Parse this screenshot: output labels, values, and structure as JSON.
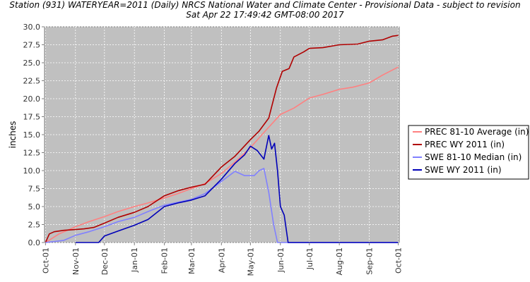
{
  "chart_data": {
    "type": "line",
    "title": "Station (931) WATERYEAR=2011 (Daily) NRCS National Water and Climate Center - Provisional Data - subject to revision",
    "subtitle": "Sat Apr 22 17:49:42 GMT-08:00 2017",
    "ylabel": "inches",
    "xlabel": "",
    "ylim": [
      0,
      30
    ],
    "yticks": [
      "0.0",
      "2.5",
      "5.0",
      "7.5",
      "10.0",
      "12.5",
      "15.0",
      "17.5",
      "20.0",
      "22.5",
      "25.0",
      "27.5",
      "30.0"
    ],
    "xlim": [
      "2010-09-30",
      "2011-10-02"
    ],
    "xticks": [
      {
        "label": "Oct-01",
        "date": "2010-10-01"
      },
      {
        "label": "Nov-01",
        "date": "2010-11-01"
      },
      {
        "label": "Dec-01",
        "date": "2010-12-01"
      },
      {
        "label": "Jan-01",
        "date": "2011-01-01"
      },
      {
        "label": "Feb-01",
        "date": "2011-02-01"
      },
      {
        "label": "Mar-01",
        "date": "2011-03-01"
      },
      {
        "label": "Apr-01",
        "date": "2011-04-01"
      },
      {
        "label": "May-01",
        "date": "2011-05-01"
      },
      {
        "label": "Jun-01",
        "date": "2011-06-01"
      },
      {
        "label": "Jul-01",
        "date": "2011-07-01"
      },
      {
        "label": "Aug-01",
        "date": "2011-08-01"
      },
      {
        "label": "Sep-01",
        "date": "2011-09-01"
      },
      {
        "label": "Oct-01",
        "date": "2011-10-01"
      }
    ],
    "grid": true,
    "background": "#c0c0c0",
    "legend_position": "right",
    "series": [
      {
        "name": "PREC 81-10 Average (in)",
        "color": "#ff8080",
        "points": [
          [
            "2010-10-01",
            0
          ],
          [
            "2010-10-08",
            0.6
          ],
          [
            "2010-10-15",
            1.2
          ],
          [
            "2010-10-22",
            1.6
          ],
          [
            "2010-11-01",
            2.2
          ],
          [
            "2010-11-15",
            2.9
          ],
          [
            "2010-12-01",
            3.6
          ],
          [
            "2010-12-15",
            4.3
          ],
          [
            "2011-01-01",
            5.0
          ],
          [
            "2011-01-15",
            5.5
          ],
          [
            "2011-02-01",
            6.2
          ],
          [
            "2011-02-15",
            6.8
          ],
          [
            "2011-03-01",
            7.5
          ],
          [
            "2011-03-15",
            8.2
          ],
          [
            "2011-04-01",
            9.6
          ],
          [
            "2011-04-15",
            11.2
          ],
          [
            "2011-05-01",
            13.2
          ],
          [
            "2011-05-15",
            15.3
          ],
          [
            "2011-06-01",
            17.8
          ],
          [
            "2011-06-15",
            18.7
          ],
          [
            "2011-07-01",
            20.1
          ],
          [
            "2011-07-15",
            20.6
          ],
          [
            "2011-08-01",
            21.3
          ],
          [
            "2011-08-15",
            21.6
          ],
          [
            "2011-09-01",
            22.2
          ],
          [
            "2011-09-15",
            23.3
          ],
          [
            "2011-10-01",
            24.4
          ]
        ]
      },
      {
        "name": "PREC WY 2011  (in)",
        "color": "#b00000",
        "points": [
          [
            "2010-10-01",
            0
          ],
          [
            "2010-10-05",
            1.2
          ],
          [
            "2010-10-10",
            1.5
          ],
          [
            "2010-10-20",
            1.7
          ],
          [
            "2010-11-01",
            1.8
          ],
          [
            "2010-11-10",
            1.9
          ],
          [
            "2010-11-20",
            2.1
          ],
          [
            "2010-12-01",
            2.7
          ],
          [
            "2010-12-15",
            3.5
          ],
          [
            "2011-01-01",
            4.2
          ],
          [
            "2011-01-15",
            5.0
          ],
          [
            "2011-02-01",
            6.5
          ],
          [
            "2011-02-15",
            7.2
          ],
          [
            "2011-03-01",
            7.7
          ],
          [
            "2011-03-15",
            8.1
          ],
          [
            "2011-04-01",
            10.5
          ],
          [
            "2011-04-15",
            12.0
          ],
          [
            "2011-05-01",
            14.3
          ],
          [
            "2011-05-10",
            15.5
          ],
          [
            "2011-05-20",
            17.3
          ],
          [
            "2011-05-28",
            21.5
          ],
          [
            "2011-06-03",
            23.8
          ],
          [
            "2011-06-10",
            24.2
          ],
          [
            "2011-06-15",
            25.8
          ],
          [
            "2011-06-25",
            26.5
          ],
          [
            "2011-07-01",
            27.0
          ],
          [
            "2011-07-15",
            27.1
          ],
          [
            "2011-08-01",
            27.5
          ],
          [
            "2011-08-20",
            27.6
          ],
          [
            "2011-09-01",
            28.0
          ],
          [
            "2011-09-15",
            28.2
          ],
          [
            "2011-09-25",
            28.7
          ],
          [
            "2011-10-01",
            28.8
          ]
        ]
      },
      {
        "name": "SWE 81-10 Median (in)",
        "color": "#8080ff",
        "points": [
          [
            "2010-10-01",
            0
          ],
          [
            "2010-10-20",
            0.3
          ],
          [
            "2010-11-01",
            1.0
          ],
          [
            "2010-11-15",
            1.5
          ],
          [
            "2010-12-01",
            2.2
          ],
          [
            "2010-12-15",
            2.9
          ],
          [
            "2011-01-01",
            3.5
          ],
          [
            "2011-01-15",
            4.3
          ],
          [
            "2011-02-01",
            5.2
          ],
          [
            "2011-02-15",
            5.6
          ],
          [
            "2011-03-01",
            6.0
          ],
          [
            "2011-03-15",
            6.8
          ],
          [
            "2011-04-01",
            8.5
          ],
          [
            "2011-04-15",
            9.9
          ],
          [
            "2011-04-25",
            9.3
          ],
          [
            "2011-05-05",
            9.3
          ],
          [
            "2011-05-10",
            10.0
          ],
          [
            "2011-05-15",
            10.3
          ],
          [
            "2011-05-20",
            7.0
          ],
          [
            "2011-05-25",
            2.5
          ],
          [
            "2011-05-29",
            0
          ],
          [
            "2011-10-01",
            0
          ]
        ]
      },
      {
        "name": "SWE WY 2011  (in)",
        "color": "#0000b8",
        "points": [
          [
            "2010-11-01",
            0
          ],
          [
            "2010-11-25",
            0
          ],
          [
            "2010-12-01",
            0.9
          ],
          [
            "2010-12-15",
            1.6
          ],
          [
            "2011-01-01",
            2.4
          ],
          [
            "2011-01-15",
            3.2
          ],
          [
            "2011-02-01",
            5.0
          ],
          [
            "2011-02-15",
            5.5
          ],
          [
            "2011-03-01",
            5.9
          ],
          [
            "2011-03-15",
            6.5
          ],
          [
            "2011-04-01",
            8.8
          ],
          [
            "2011-04-15",
            11.0
          ],
          [
            "2011-04-25",
            12.2
          ],
          [
            "2011-05-01",
            13.4
          ],
          [
            "2011-05-08",
            12.8
          ],
          [
            "2011-05-15",
            11.6
          ],
          [
            "2011-05-20",
            14.9
          ],
          [
            "2011-05-23",
            13.0
          ],
          [
            "2011-05-26",
            13.8
          ],
          [
            "2011-05-29",
            10.0
          ],
          [
            "2011-06-01",
            5.0
          ],
          [
            "2011-06-05",
            3.8
          ],
          [
            "2011-06-09",
            0
          ],
          [
            "2011-10-01",
            0
          ]
        ]
      }
    ]
  }
}
